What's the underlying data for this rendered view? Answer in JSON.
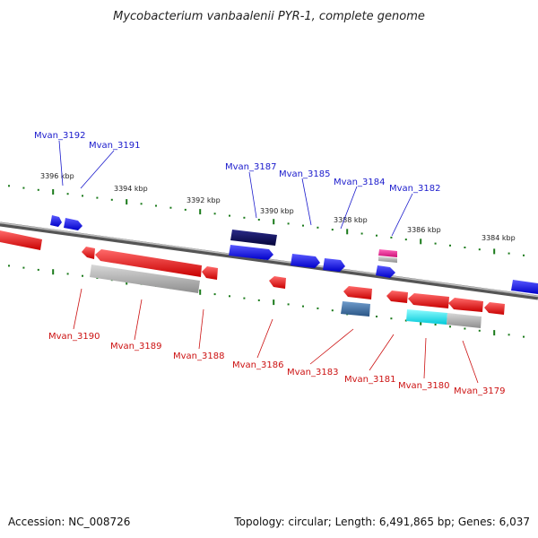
{
  "title": "Mycobacterium vanbaalenii PYR-1, complete genome",
  "footer": {
    "accession": "Accession: NC_008726",
    "summary": "Topology: circular; Length: 6,491,865 bp; Genes: 6,037"
  },
  "colors": {
    "forward_label": "#1a1acc",
    "reverse_label": "#cc1111",
    "forward_gene": "#1a1aee",
    "reverse_gene": "#ee1111",
    "dark_gene": "#0a0a66",
    "highlight_gene": "#00e5ee",
    "pseudo_gene": "#aaaaaa",
    "pink_gene": "#ee2288",
    "steel_gene": "#3a6ea5",
    "scale_dots": "#1a7a1a"
  },
  "scale_ticks": [
    "3396 kbp",
    "3394 kbp",
    "3392 kbp",
    "3390 kbp",
    "3388 kbp",
    "3386 kbp",
    "3384 kbp"
  ],
  "forward_genes": [
    "Mvan_3192",
    "Mvan_3191",
    "Mvan_3187",
    "Mvan_3185",
    "Mvan_3184",
    "Mvan_3182"
  ],
  "reverse_genes": [
    "Mvan_3190",
    "Mvan_3189",
    "Mvan_3188",
    "Mvan_3186",
    "Mvan_3183",
    "Mvan_3181",
    "Mvan_3180",
    "Mvan_3179"
  ]
}
